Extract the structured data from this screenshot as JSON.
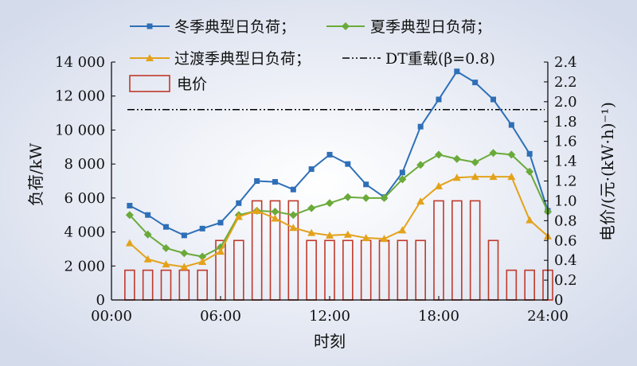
{
  "chart_data": {
    "type": "line",
    "xlabel": "时刻",
    "ylabel": "负荷/kW",
    "y2label": "电价/(元·(kW·h)⁻¹)",
    "xlim": [
      0,
      24
    ],
    "ylim": [
      0,
      14000
    ],
    "y2lim": [
      0,
      2.4
    ],
    "xticks": [
      "00:00",
      "06:00",
      "12:00",
      "18:00",
      "24:00"
    ],
    "yticks": [
      "0",
      "2 000",
      "4 000",
      "6 000",
      "8 000",
      "10 000",
      "12 000",
      "14 000"
    ],
    "y2ticks": [
      "0",
      "0.2",
      "0.4",
      "0.6",
      "0.8",
      "1.0",
      "1.2",
      "1.4",
      "1.6",
      "1.8",
      "2.0",
      "2.2",
      "2.4"
    ],
    "x": [
      1,
      2,
      3,
      4,
      5,
      6,
      7,
      8,
      9,
      10,
      11,
      12,
      13,
      14,
      15,
      16,
      17,
      18,
      19,
      20,
      21,
      22,
      23,
      24
    ],
    "series": [
      {
        "name": "冬季典型日负荷；",
        "axis": "left",
        "color": "#2e6fb7",
        "marker": "square",
        "values": [
          5550,
          5000,
          4300,
          3800,
          4200,
          4550,
          5700,
          7000,
          6950,
          6500,
          7700,
          8550,
          8000,
          6800,
          6050,
          7500,
          10200,
          11800,
          13450,
          12800,
          11800,
          10300,
          8600,
          5250
        ]
      },
      {
        "name": "夏季典型日负荷；",
        "axis": "left",
        "color": "#6aaa3a",
        "marker": "diamond",
        "values": [
          5000,
          3850,
          3050,
          2750,
          2550,
          3100,
          5000,
          5250,
          5200,
          5000,
          5400,
          5700,
          6050,
          6000,
          6000,
          7100,
          7950,
          8550,
          8300,
          8100,
          8650,
          8550,
          7550,
          5200
        ]
      },
      {
        "name": "过渡季典型日负荷；",
        "axis": "left",
        "color": "#e3a21a",
        "marker": "triangle",
        "values": [
          3350,
          2400,
          2100,
          1950,
          2250,
          2850,
          4900,
          5250,
          4800,
          4250,
          3950,
          3800,
          3850,
          3650,
          3600,
          4100,
          5800,
          6700,
          7200,
          7250,
          7250,
          7250,
          4700,
          3750
        ]
      }
    ],
    "reference_line": {
      "name": "DT重载(β=0.8)",
      "value": 11200,
      "axis": "left",
      "color": "#000000"
    },
    "bars": {
      "name": "电价",
      "axis": "right",
      "color": "#c0392b",
      "values": [
        0.3,
        0.3,
        0.3,
        0.3,
        0.3,
        0.6,
        0.6,
        1.0,
        1.0,
        1.0,
        0.6,
        0.6,
        0.6,
        0.6,
        0.6,
        0.6,
        0.6,
        1.0,
        1.0,
        1.0,
        0.6,
        0.3,
        0.3,
        0.3
      ]
    },
    "legend": {
      "placement": "top",
      "row1": [
        "冬季典型日负荷；",
        "夏季典型日负荷；"
      ],
      "row2": [
        "过渡季典型日负荷；",
        "DT重载(β=0.8)"
      ],
      "row3": [
        "电价"
      ]
    },
    "grid": false
  }
}
